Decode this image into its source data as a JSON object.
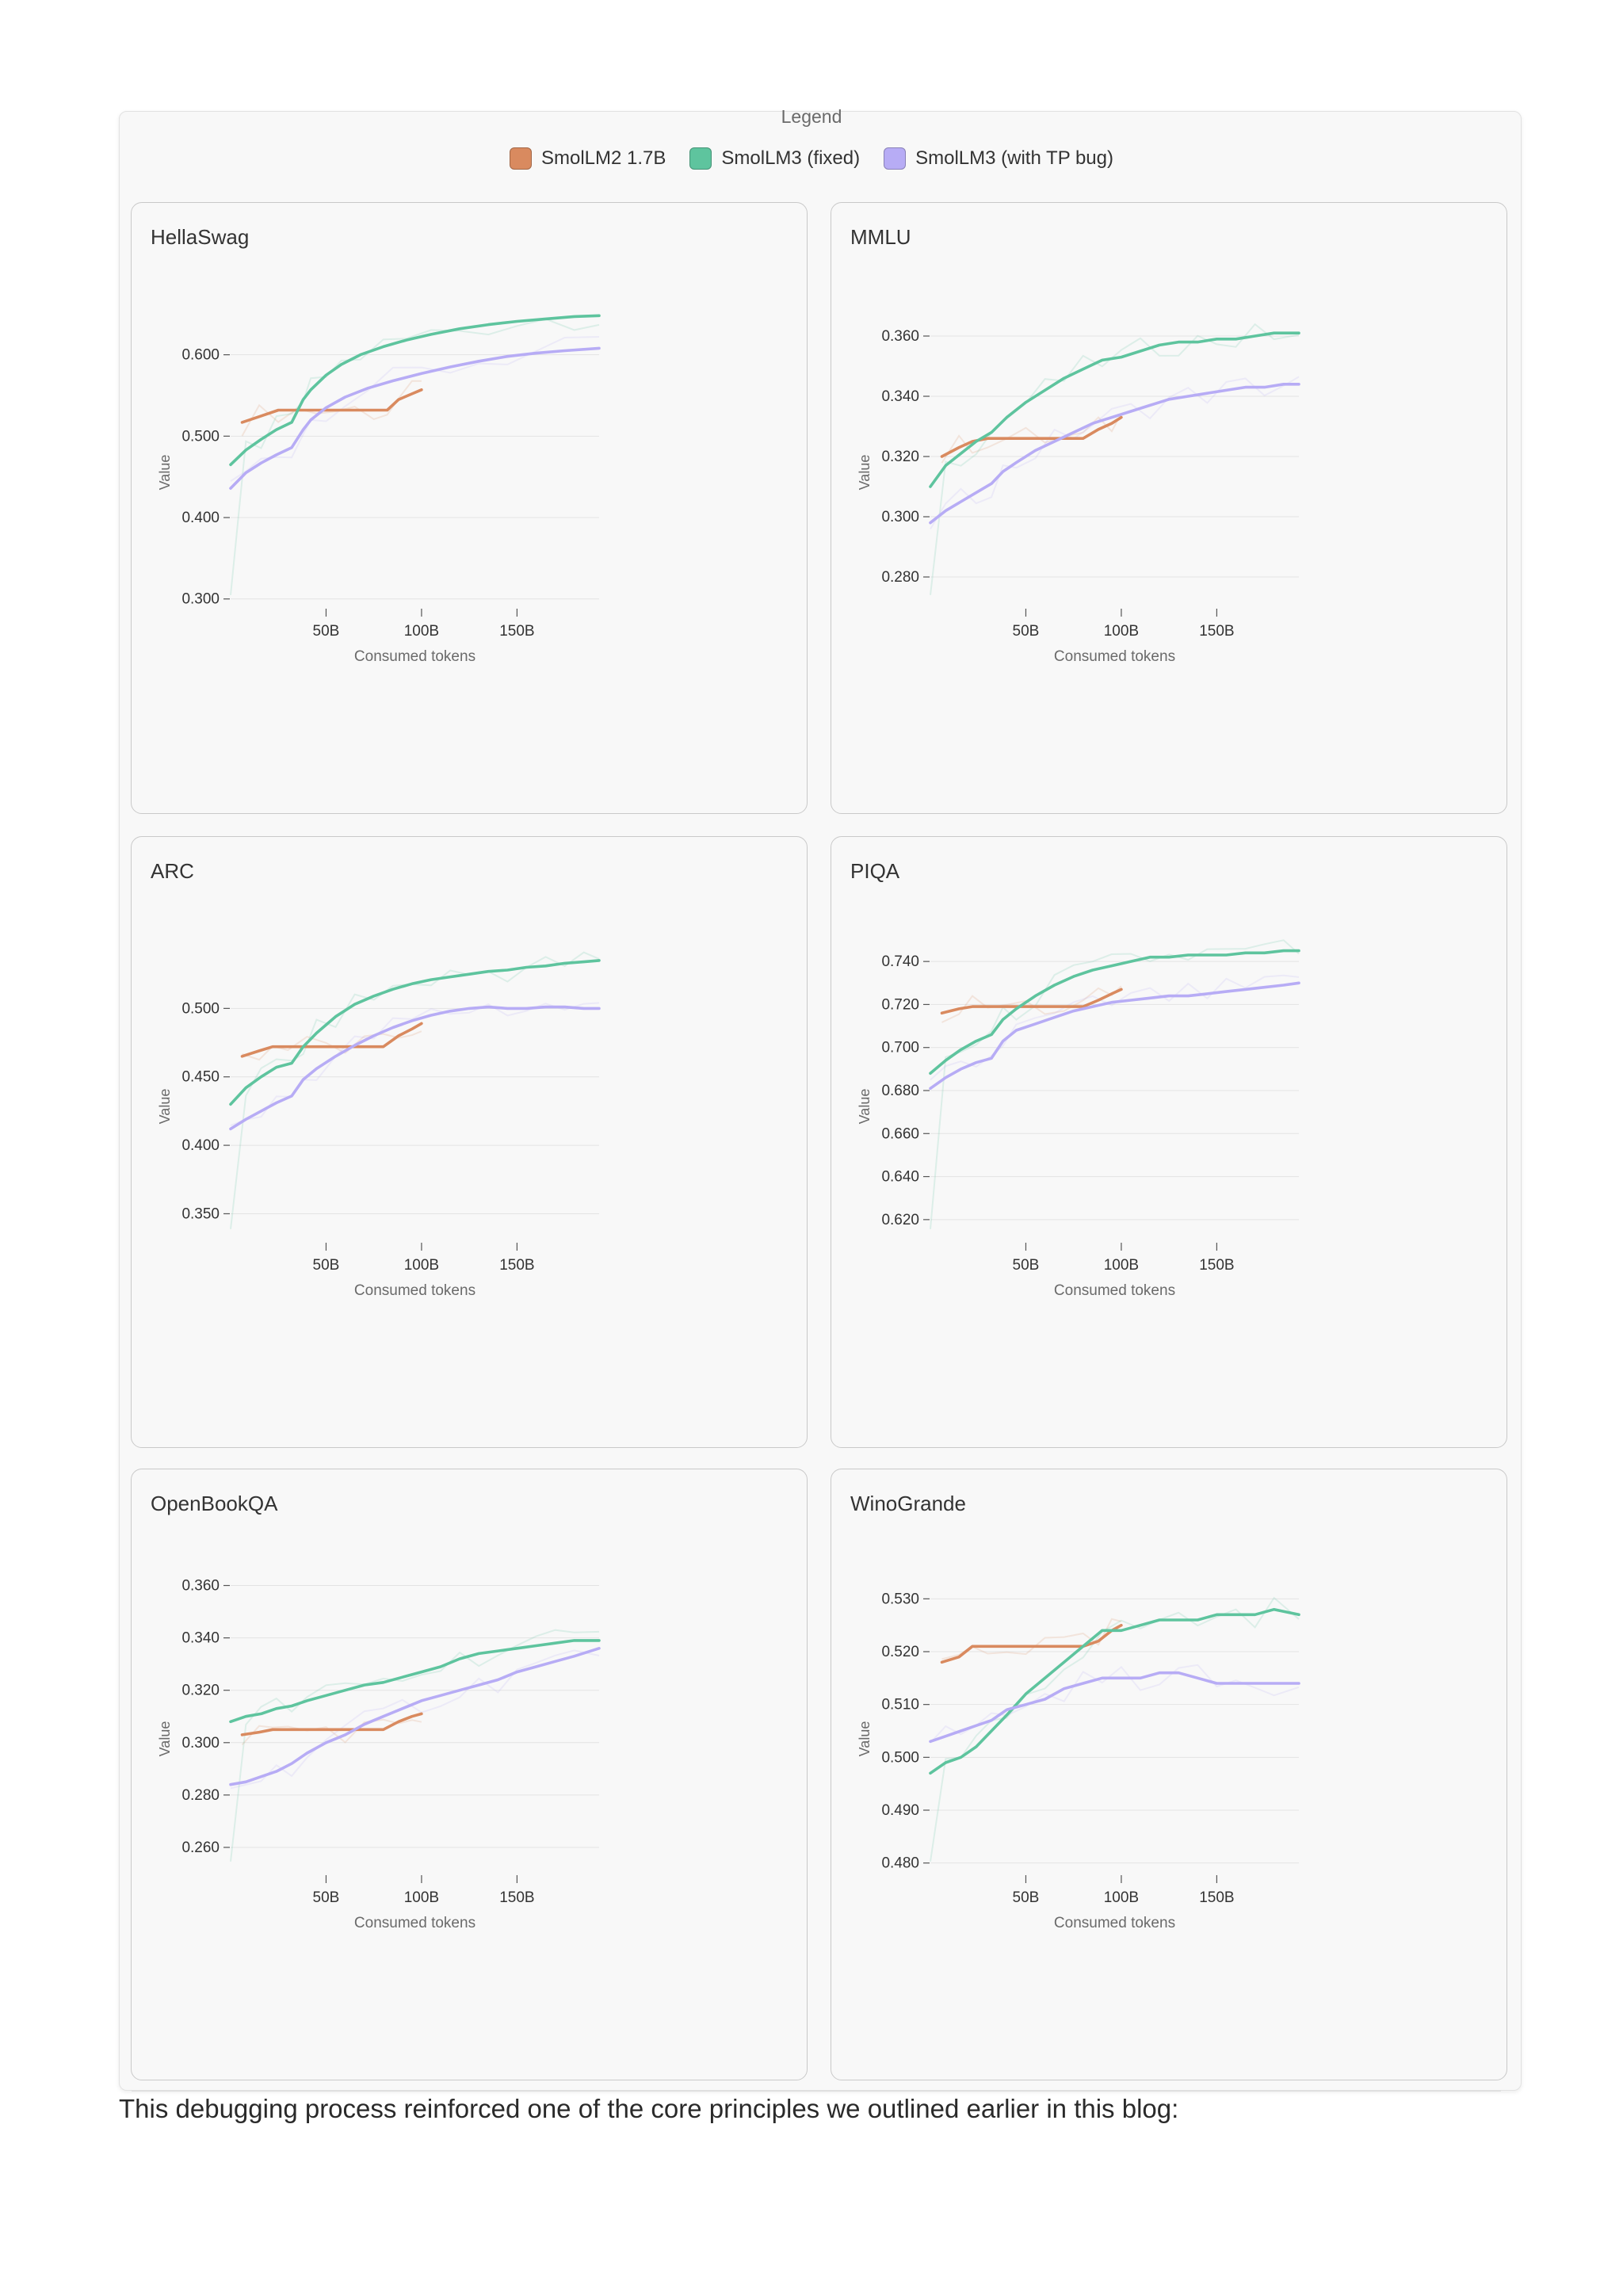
{
  "legend": {
    "title": "Legend",
    "items": [
      {
        "label": "SmolLM2 1.7B",
        "color": "#d98a5f"
      },
      {
        "label": "SmolLM3 (fixed)",
        "color": "#5ec49e"
      },
      {
        "label": "SmolLM3 (with TP bug)",
        "color": "#b7acf5"
      }
    ]
  },
  "caption": "This debugging process reinforced one of the core principles we outlined earlier in this blog:",
  "chart_data": [
    {
      "type": "line",
      "title": "HellaSwag",
      "xlabel": "Consumed tokens",
      "ylabel": "Value",
      "xlim": [
        0,
        193
      ],
      "ylim": [
        0.29,
        0.66
      ],
      "xticks": [
        50,
        100,
        150
      ],
      "xtick_labels": [
        "50B",
        "100B",
        "150B"
      ],
      "yticks": [
        0.3,
        0.4,
        0.5,
        0.6
      ],
      "ytick_labels": [
        "0.300",
        "0.400",
        "0.500",
        "0.600"
      ],
      "grid": true,
      "series": [
        {
          "name": "SmolLM2 1.7B",
          "color": "#d98a5f",
          "x": [
            6,
            15,
            25,
            35,
            45,
            55,
            65,
            75,
            82,
            88,
            95,
            100
          ],
          "y": [
            0.517,
            0.524,
            0.532,
            0.532,
            0.532,
            0.532,
            0.532,
            0.532,
            0.532,
            0.545,
            0.552,
            0.557
          ]
        },
        {
          "name": "SmolLM3 (fixed)",
          "color": "#5ec49e",
          "x": [
            0,
            8,
            16,
            24,
            32,
            38,
            42,
            50,
            58,
            68,
            80,
            92,
            105,
            120,
            135,
            150,
            165,
            180,
            193
          ],
          "y": [
            0.465,
            0.483,
            0.496,
            0.508,
            0.517,
            0.545,
            0.557,
            0.575,
            0.588,
            0.6,
            0.61,
            0.618,
            0.625,
            0.632,
            0.637,
            0.641,
            0.644,
            0.647,
            0.648
          ]
        },
        {
          "name": "SmolLM3 (with TP bug)",
          "color": "#b7acf5",
          "x": [
            0,
            8,
            16,
            24,
            32,
            38,
            42,
            50,
            60,
            72,
            85,
            100,
            115,
            130,
            145,
            160,
            175,
            193
          ],
          "y": [
            0.436,
            0.455,
            0.467,
            0.477,
            0.486,
            0.508,
            0.52,
            0.535,
            0.548,
            0.559,
            0.568,
            0.577,
            0.585,
            0.592,
            0.598,
            0.602,
            0.605,
            0.608
          ]
        }
      ]
    },
    {
      "type": "line",
      "title": "MMLU",
      "xlabel": "Consumed tokens",
      "ylabel": "Value",
      "xlim": [
        0,
        193
      ],
      "ylim": [
        0.27,
        0.37
      ],
      "xticks": [
        50,
        100,
        150
      ],
      "xtick_labels": [
        "50B",
        "100B",
        "150B"
      ],
      "yticks": [
        0.28,
        0.3,
        0.32,
        0.34,
        0.36
      ],
      "ytick_labels": [
        "0.280",
        "0.300",
        "0.320",
        "0.340",
        "0.360"
      ],
      "grid": true,
      "series": [
        {
          "name": "SmolLM2 1.7B",
          "color": "#d98a5f",
          "x": [
            6,
            15,
            22,
            30,
            40,
            50,
            60,
            70,
            80,
            88,
            95,
            100
          ],
          "y": [
            0.32,
            0.323,
            0.325,
            0.326,
            0.326,
            0.326,
            0.326,
            0.326,
            0.326,
            0.329,
            0.331,
            0.333
          ]
        },
        {
          "name": "SmolLM3 (fixed)",
          "color": "#5ec49e",
          "x": [
            0,
            8,
            16,
            24,
            32,
            40,
            50,
            60,
            70,
            80,
            90,
            100,
            110,
            120,
            130,
            140,
            150,
            160,
            170,
            180,
            193
          ],
          "y": [
            0.31,
            0.317,
            0.321,
            0.325,
            0.328,
            0.333,
            0.338,
            0.342,
            0.346,
            0.349,
            0.352,
            0.353,
            0.355,
            0.357,
            0.358,
            0.358,
            0.359,
            0.359,
            0.36,
            0.361,
            0.361
          ]
        },
        {
          "name": "SmolLM3 (with TP bug)",
          "color": "#b7acf5",
          "x": [
            0,
            8,
            16,
            24,
            32,
            38,
            45,
            55,
            65,
            75,
            85,
            95,
            105,
            115,
            125,
            135,
            145,
            155,
            165,
            175,
            185,
            193
          ],
          "y": [
            0.298,
            0.302,
            0.305,
            0.308,
            0.311,
            0.315,
            0.318,
            0.322,
            0.325,
            0.328,
            0.331,
            0.333,
            0.335,
            0.337,
            0.339,
            0.34,
            0.341,
            0.342,
            0.343,
            0.343,
            0.344,
            0.344
          ]
        }
      ]
    },
    {
      "type": "line",
      "title": "ARC",
      "xlabel": "Consumed tokens",
      "ylabel": "Value",
      "xlim": [
        0,
        193
      ],
      "ylim": [
        0.33,
        0.55
      ],
      "xticks": [
        50,
        100,
        150
      ],
      "xtick_labels": [
        "50B",
        "100B",
        "150B"
      ],
      "yticks": [
        0.35,
        0.4,
        0.45,
        0.5
      ],
      "ytick_labels": [
        "0.350",
        "0.400",
        "0.450",
        "0.500"
      ],
      "grid": true,
      "series": [
        {
          "name": "SmolLM2 1.7B",
          "color": "#d98a5f",
          "x": [
            6,
            15,
            22,
            30,
            40,
            50,
            60,
            70,
            80,
            88,
            95,
            100
          ],
          "y": [
            0.465,
            0.469,
            0.472,
            0.472,
            0.472,
            0.472,
            0.472,
            0.472,
            0.472,
            0.48,
            0.485,
            0.489
          ]
        },
        {
          "name": "SmolLM3 (fixed)",
          "color": "#5ec49e",
          "x": [
            0,
            8,
            16,
            24,
            32,
            38,
            45,
            55,
            65,
            75,
            85,
            95,
            105,
            115,
            125,
            135,
            145,
            155,
            165,
            175,
            185,
            193
          ],
          "y": [
            0.43,
            0.442,
            0.45,
            0.457,
            0.46,
            0.472,
            0.482,
            0.494,
            0.503,
            0.509,
            0.514,
            0.518,
            0.521,
            0.523,
            0.525,
            0.527,
            0.528,
            0.53,
            0.531,
            0.533,
            0.534,
            0.535
          ]
        },
        {
          "name": "SmolLM3 (with TP bug)",
          "color": "#b7acf5",
          "x": [
            0,
            8,
            16,
            24,
            32,
            38,
            45,
            55,
            65,
            75,
            85,
            95,
            105,
            115,
            125,
            135,
            145,
            155,
            165,
            175,
            185,
            193
          ],
          "y": [
            0.412,
            0.419,
            0.425,
            0.431,
            0.436,
            0.448,
            0.456,
            0.465,
            0.473,
            0.48,
            0.486,
            0.491,
            0.495,
            0.498,
            0.5,
            0.501,
            0.5,
            0.5,
            0.501,
            0.501,
            0.5,
            0.5
          ]
        }
      ]
    },
    {
      "type": "line",
      "title": "PIQA",
      "xlabel": "Consumed tokens",
      "ylabel": "Value",
      "xlim": [
        0,
        193
      ],
      "ylim": [
        0.61,
        0.75
      ],
      "xticks": [
        50,
        100,
        150
      ],
      "xtick_labels": [
        "50B",
        "100B",
        "150B"
      ],
      "yticks": [
        0.62,
        0.64,
        0.66,
        0.68,
        0.7,
        0.72,
        0.74
      ],
      "ytick_labels": [
        "0.620",
        "0.640",
        "0.660",
        "0.680",
        "0.700",
        "0.720",
        "0.740"
      ],
      "grid": true,
      "series": [
        {
          "name": "SmolLM2 1.7B",
          "color": "#d98a5f",
          "x": [
            6,
            15,
            22,
            30,
            40,
            50,
            60,
            70,
            80,
            88,
            95,
            100
          ],
          "y": [
            0.716,
            0.718,
            0.719,
            0.719,
            0.719,
            0.719,
            0.719,
            0.719,
            0.719,
            0.722,
            0.725,
            0.727
          ]
        },
        {
          "name": "SmolLM3 (fixed)",
          "color": "#5ec49e",
          "x": [
            0,
            8,
            16,
            24,
            32,
            38,
            45,
            55,
            65,
            75,
            85,
            95,
            105,
            115,
            125,
            135,
            145,
            155,
            165,
            175,
            185,
            193
          ],
          "y": [
            0.688,
            0.694,
            0.699,
            0.703,
            0.706,
            0.713,
            0.718,
            0.724,
            0.729,
            0.733,
            0.736,
            0.738,
            0.74,
            0.742,
            0.742,
            0.743,
            0.743,
            0.743,
            0.744,
            0.744,
            0.745,
            0.745
          ]
        },
        {
          "name": "SmolLM3 (with TP bug)",
          "color": "#b7acf5",
          "x": [
            0,
            8,
            16,
            24,
            32,
            38,
            45,
            55,
            65,
            75,
            85,
            95,
            105,
            115,
            125,
            135,
            145,
            155,
            165,
            175,
            185,
            193
          ],
          "y": [
            0.681,
            0.686,
            0.69,
            0.693,
            0.695,
            0.703,
            0.708,
            0.711,
            0.714,
            0.717,
            0.719,
            0.721,
            0.722,
            0.723,
            0.724,
            0.724,
            0.725,
            0.726,
            0.727,
            0.728,
            0.729,
            0.73
          ]
        }
      ]
    },
    {
      "type": "line",
      "title": "OpenBookQA",
      "xlabel": "Consumed tokens",
      "ylabel": "Value",
      "xlim": [
        0,
        193
      ],
      "ylim": [
        0.25,
        0.365
      ],
      "xticks": [
        50,
        100,
        150
      ],
      "xtick_labels": [
        "50B",
        "100B",
        "150B"
      ],
      "yticks": [
        0.26,
        0.28,
        0.3,
        0.32,
        0.34,
        0.36
      ],
      "ytick_labels": [
        "0.260",
        "0.280",
        "0.300",
        "0.320",
        "0.340",
        "0.360"
      ],
      "grid": true,
      "series": [
        {
          "name": "SmolLM2 1.7B",
          "color": "#d98a5f",
          "x": [
            6,
            15,
            22,
            30,
            40,
            50,
            60,
            70,
            80,
            88,
            95,
            100
          ],
          "y": [
            0.303,
            0.304,
            0.305,
            0.305,
            0.305,
            0.305,
            0.305,
            0.305,
            0.305,
            0.308,
            0.31,
            0.311
          ]
        },
        {
          "name": "SmolLM3 (fixed)",
          "color": "#5ec49e",
          "x": [
            0,
            8,
            16,
            24,
            32,
            40,
            50,
            60,
            70,
            80,
            90,
            100,
            110,
            120,
            130,
            140,
            150,
            160,
            170,
            180,
            193
          ],
          "y": [
            0.308,
            0.31,
            0.311,
            0.313,
            0.314,
            0.316,
            0.318,
            0.32,
            0.322,
            0.323,
            0.325,
            0.327,
            0.329,
            0.332,
            0.334,
            0.335,
            0.336,
            0.337,
            0.338,
            0.339,
            0.339
          ]
        },
        {
          "name": "SmolLM3 (with TP bug)",
          "color": "#b7acf5",
          "x": [
            0,
            8,
            16,
            24,
            32,
            40,
            50,
            60,
            70,
            80,
            90,
            100,
            110,
            120,
            130,
            140,
            150,
            160,
            170,
            180,
            193
          ],
          "y": [
            0.284,
            0.285,
            0.287,
            0.289,
            0.292,
            0.296,
            0.3,
            0.303,
            0.307,
            0.31,
            0.313,
            0.316,
            0.318,
            0.32,
            0.322,
            0.324,
            0.327,
            0.329,
            0.331,
            0.333,
            0.336
          ]
        }
      ]
    },
    {
      "type": "line",
      "title": "WinoGrande",
      "xlabel": "Consumed tokens",
      "ylabel": "Value",
      "xlim": [
        0,
        193
      ],
      "ylim": [
        0.478,
        0.535
      ],
      "xticks": [
        50,
        100,
        150
      ],
      "xtick_labels": [
        "50B",
        "100B",
        "150B"
      ],
      "yticks": [
        0.48,
        0.49,
        0.5,
        0.51,
        0.52,
        0.53
      ],
      "ytick_labels": [
        "0.480",
        "0.490",
        "0.500",
        "0.510",
        "0.520",
        "0.530"
      ],
      "grid": true,
      "series": [
        {
          "name": "SmolLM2 1.7B",
          "color": "#d98a5f",
          "x": [
            6,
            15,
            22,
            30,
            40,
            50,
            60,
            70,
            80,
            88,
            95,
            100
          ],
          "y": [
            0.518,
            0.519,
            0.521,
            0.521,
            0.521,
            0.521,
            0.521,
            0.521,
            0.521,
            0.522,
            0.524,
            0.525
          ]
        },
        {
          "name": "SmolLM3 (fixed)",
          "color": "#5ec49e",
          "x": [
            0,
            8,
            16,
            24,
            32,
            40,
            50,
            60,
            70,
            80,
            90,
            100,
            110,
            120,
            130,
            140,
            150,
            160,
            170,
            180,
            193
          ],
          "y": [
            0.497,
            0.499,
            0.5,
            0.502,
            0.505,
            0.508,
            0.512,
            0.515,
            0.518,
            0.521,
            0.524,
            0.524,
            0.525,
            0.526,
            0.526,
            0.526,
            0.527,
            0.527,
            0.527,
            0.528,
            0.527
          ]
        },
        {
          "name": "SmolLM3 (with TP bug)",
          "color": "#b7acf5",
          "x": [
            0,
            8,
            16,
            24,
            32,
            40,
            50,
            60,
            70,
            80,
            90,
            100,
            110,
            120,
            130,
            140,
            150,
            160,
            170,
            180,
            193
          ],
          "y": [
            0.503,
            0.504,
            0.505,
            0.506,
            0.507,
            0.509,
            0.51,
            0.511,
            0.513,
            0.514,
            0.515,
            0.515,
            0.515,
            0.516,
            0.516,
            0.515,
            0.514,
            0.514,
            0.514,
            0.514,
            0.514
          ]
        }
      ]
    }
  ]
}
